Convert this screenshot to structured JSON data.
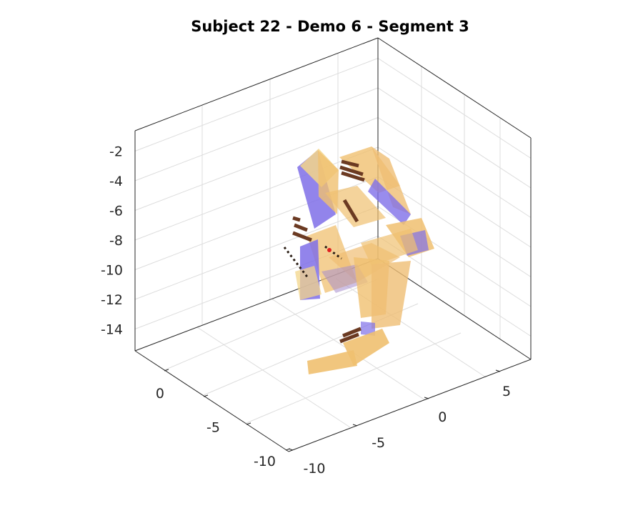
{
  "chart_data": {
    "type": "3d-surface-segments",
    "title": "Subject 22 - Demo 6 - Segment 3",
    "zaxis": {
      "ticks": [
        -2,
        -4,
        -6,
        -8,
        -10,
        -12,
        -14
      ],
      "labels": [
        "-2",
        "-4",
        "-6",
        "-8",
        "-10",
        "-12",
        "-14"
      ]
    },
    "xaxis_left": {
      "ticks": [
        0,
        -5,
        -10
      ],
      "labels": [
        "0",
        "-5",
        "-10"
      ]
    },
    "yaxis_right": {
      "ticks": [
        5,
        0,
        -5,
        -10
      ],
      "labels": [
        "5",
        "0",
        "-5",
        "-10"
      ]
    },
    "grid": true,
    "colors": {
      "orange": "#f0c070",
      "blue": "#7f6fe8",
      "brown": "#6b3a22",
      "dark": "#2a1d14"
    }
  }
}
